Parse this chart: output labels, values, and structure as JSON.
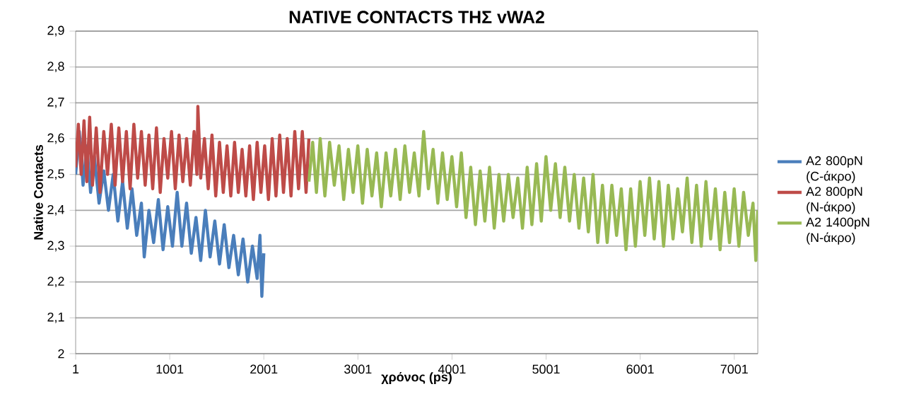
{
  "chart_data": {
    "type": "line",
    "title": "NATIVE CONTACTS ΤΗΣ vWA2",
    "xlabel": "χρόνος (ps)",
    "ylabel": "Native Contacts",
    "xlim": [
      1,
      7251
    ],
    "xticks": [
      1,
      1001,
      2001,
      3001,
      4001,
      5001,
      6001,
      7001
    ],
    "ylim": [
      2,
      2.9
    ],
    "yticks": [
      {
        "value": 2,
        "label": "2"
      },
      {
        "value": 2.1,
        "label": "2,1"
      },
      {
        "value": 2.2,
        "label": "2,2"
      },
      {
        "value": 2.3,
        "label": "2,3"
      },
      {
        "value": 2.4,
        "label": "2,4"
      },
      {
        "value": 2.5,
        "label": "2,5"
      },
      {
        "value": 2.6,
        "label": "2,6"
      },
      {
        "value": 2.7,
        "label": "2,7"
      },
      {
        "value": 2.8,
        "label": "2,8"
      },
      {
        "value": 2.9,
        "label": "2,9"
      }
    ],
    "grid": "y",
    "legend": "right",
    "marker": "none",
    "line_style": "solid",
    "series": [
      {
        "name": "A2 800pN (C-άκρο)",
        "color": "#4a7ebb",
        "x": [
          1,
          40,
          80,
          120,
          160,
          200,
          250,
          300,
          350,
          400,
          450,
          500,
          550,
          600,
          650,
          700,
          730,
          780,
          830,
          880,
          930,
          980,
          1030,
          1080,
          1130,
          1180,
          1230,
          1280,
          1330,
          1380,
          1430,
          1480,
          1530,
          1580,
          1630,
          1680,
          1730,
          1780,
          1830,
          1880,
          1930,
          1960,
          1980,
          2001
        ],
        "values": [
          2.5,
          2.62,
          2.47,
          2.58,
          2.45,
          2.55,
          2.42,
          2.51,
          2.4,
          2.5,
          2.37,
          2.48,
          2.35,
          2.46,
          2.33,
          2.42,
          2.27,
          2.4,
          2.31,
          2.43,
          2.29,
          2.41,
          2.3,
          2.45,
          2.3,
          2.42,
          2.28,
          2.38,
          2.26,
          2.4,
          2.27,
          2.37,
          2.25,
          2.36,
          2.24,
          2.33,
          2.22,
          2.32,
          2.2,
          2.3,
          2.21,
          2.33,
          2.16,
          2.28
        ]
      },
      {
        "name": "A2 800pN (N-άκρο)",
        "color": "#be4b48",
        "x": [
          1,
          30,
          60,
          90,
          120,
          150,
          180,
          220,
          260,
          300,
          340,
          380,
          420,
          460,
          500,
          540,
          580,
          620,
          660,
          700,
          740,
          780,
          820,
          860,
          900,
          940,
          980,
          1020,
          1060,
          1100,
          1140,
          1180,
          1220,
          1260,
          1290,
          1300,
          1330,
          1370,
          1410,
          1450,
          1490,
          1530,
          1570,
          1610,
          1650,
          1690,
          1730,
          1770,
          1810,
          1850,
          1890,
          1930,
          1970,
          2010,
          2050,
          2090,
          2130,
          2170,
          2210,
          2250,
          2290,
          2330,
          2370,
          2410,
          2450,
          2480
        ],
        "values": [
          2.52,
          2.64,
          2.5,
          2.65,
          2.48,
          2.66,
          2.47,
          2.63,
          2.45,
          2.62,
          2.5,
          2.64,
          2.47,
          2.63,
          2.48,
          2.62,
          2.46,
          2.64,
          2.49,
          2.62,
          2.47,
          2.61,
          2.46,
          2.63,
          2.45,
          2.6,
          2.49,
          2.62,
          2.46,
          2.61,
          2.48,
          2.6,
          2.47,
          2.62,
          2.5,
          2.69,
          2.49,
          2.6,
          2.46,
          2.61,
          2.44,
          2.59,
          2.45,
          2.58,
          2.44,
          2.59,
          2.45,
          2.57,
          2.44,
          2.58,
          2.43,
          2.59,
          2.45,
          2.58,
          2.43,
          2.6,
          2.44,
          2.61,
          2.45,
          2.6,
          2.44,
          2.62,
          2.46,
          2.62,
          2.45,
          2.6
        ]
      },
      {
        "name": "A2 1400pN (N-άκρο)",
        "color": "#98b954",
        "x": [
          2480,
          2520,
          2560,
          2600,
          2650,
          2700,
          2750,
          2800,
          2850,
          2900,
          2950,
          3000,
          3050,
          3100,
          3150,
          3200,
          3250,
          3300,
          3350,
          3400,
          3450,
          3500,
          3550,
          3600,
          3650,
          3700,
          3750,
          3800,
          3850,
          3900,
          3950,
          4000,
          4050,
          4100,
          4150,
          4200,
          4250,
          4300,
          4350,
          4400,
          4450,
          4500,
          4550,
          4600,
          4650,
          4700,
          4750,
          4800,
          4850,
          4900,
          4950,
          5000,
          5050,
          5100,
          5150,
          5200,
          5250,
          5300,
          5350,
          5400,
          5450,
          5500,
          5550,
          5600,
          5650,
          5700,
          5750,
          5800,
          5850,
          5900,
          5950,
          6000,
          6050,
          6100,
          6150,
          6200,
          6250,
          6300,
          6350,
          6400,
          6450,
          6500,
          6550,
          6600,
          6650,
          6700,
          6750,
          6800,
          6850,
          6900,
          6950,
          7000,
          7050,
          7100,
          7150,
          7200,
          7230,
          7251
        ],
        "values": [
          2.48,
          2.59,
          2.45,
          2.6,
          2.44,
          2.59,
          2.47,
          2.58,
          2.43,
          2.57,
          2.45,
          2.58,
          2.42,
          2.57,
          2.44,
          2.56,
          2.41,
          2.56,
          2.44,
          2.57,
          2.43,
          2.58,
          2.45,
          2.56,
          2.44,
          2.62,
          2.46,
          2.57,
          2.42,
          2.56,
          2.43,
          2.55,
          2.41,
          2.56,
          2.38,
          2.52,
          2.36,
          2.51,
          2.37,
          2.52,
          2.35,
          2.5,
          2.37,
          2.5,
          2.38,
          2.49,
          2.35,
          2.52,
          2.36,
          2.53,
          2.37,
          2.55,
          2.4,
          2.53,
          2.38,
          2.52,
          2.37,
          2.5,
          2.35,
          2.49,
          2.34,
          2.5,
          2.31,
          2.47,
          2.31,
          2.47,
          2.33,
          2.46,
          2.29,
          2.46,
          2.3,
          2.48,
          2.33,
          2.49,
          2.32,
          2.48,
          2.3,
          2.47,
          2.32,
          2.46,
          2.34,
          2.49,
          2.31,
          2.47,
          2.3,
          2.48,
          2.32,
          2.46,
          2.29,
          2.45,
          2.31,
          2.46,
          2.3,
          2.45,
          2.33,
          2.42,
          2.26,
          2.4
        ]
      }
    ]
  }
}
